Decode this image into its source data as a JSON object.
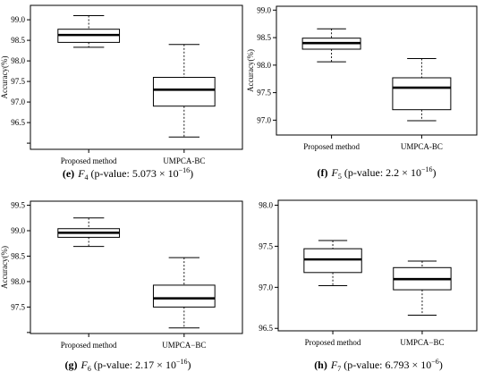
{
  "chart_data": [
    {
      "type": "box",
      "ylabel": "Accuracy(%)",
      "ylim": [
        95.85,
        99.35
      ],
      "yticks": [
        96.5,
        97.0,
        97.5,
        98.0,
        98.5,
        99.0
      ],
      "ytick_labels": [
        "96.5",
        "97.0",
        "97.5",
        "98.0",
        "98.5",
        "99.0"
      ],
      "minor_yticks": [
        96.0
      ],
      "categories": [
        "Proposed method",
        "UMPCA-BC"
      ],
      "boxes": [
        {
          "min": 98.33,
          "q1": 98.45,
          "median": 98.63,
          "q3": 98.77,
          "max": 99.1
        },
        {
          "min": 96.15,
          "q1": 96.9,
          "median": 97.3,
          "q3": 97.6,
          "max": 98.4
        }
      ],
      "caption": {
        "letter": "(e)",
        "var": "F",
        "sub": "4",
        "text": " (p-value: 5.073 × 10",
        "exp": "−16",
        "close": ")"
      }
    },
    {
      "type": "box",
      "ylabel": "Accuracy(%)",
      "ylim": [
        96.73,
        99.07
      ],
      "yticks": [
        97.0,
        97.5,
        98.0,
        98.5,
        99.0
      ],
      "ytick_labels": [
        "97.0",
        "97.5",
        "98.0",
        "98.5",
        "99.0"
      ],
      "minor_yticks": [],
      "categories": [
        "Proposed method",
        "UMPCA-BC"
      ],
      "boxes": [
        {
          "min": 98.06,
          "q1": 98.29,
          "median": 98.4,
          "q3": 98.49,
          "max": 98.66
        },
        {
          "min": 96.99,
          "q1": 97.19,
          "median": 97.59,
          "q3": 97.77,
          "max": 98.12
        }
      ],
      "caption": {
        "letter": "(f)",
        "var": "F",
        "sub": "5",
        "text": " (p-value: 2.2 × 10",
        "exp": "−16",
        "close": ")"
      }
    },
    {
      "type": "box",
      "ylabel": "Accuracy(%)",
      "ylim": [
        96.98,
        99.58
      ],
      "yticks": [
        97.5,
        98.0,
        98.5,
        99.0,
        99.5
      ],
      "ytick_labels": [
        "97.5",
        "98.0",
        "98.5",
        "99.0",
        "99.5"
      ],
      "minor_yticks": [
        97.0
      ],
      "categories": [
        "Proposed method",
        "UMPCA−BC"
      ],
      "boxes": [
        {
          "min": 98.69,
          "q1": 98.87,
          "median": 98.96,
          "q3": 99.04,
          "max": 99.25
        },
        {
          "min": 97.09,
          "q1": 97.5,
          "median": 97.67,
          "q3": 97.93,
          "max": 98.47
        }
      ],
      "caption": {
        "letter": "(g)",
        "var": "F",
        "sub": "6",
        "text": " (p-value: 2.17 × 10",
        "exp": "−16",
        "close": ")"
      }
    },
    {
      "type": "box",
      "ylabel": "",
      "ylim": [
        96.47,
        98.06
      ],
      "yticks": [
        96.5,
        97.0,
        97.5,
        98.0
      ],
      "ytick_labels": [
        "96.5",
        "97.0",
        "97.5",
        "98.0"
      ],
      "minor_yticks": [],
      "categories": [
        "Proposed method",
        "UMPCA−BC"
      ],
      "boxes": [
        {
          "min": 97.02,
          "q1": 97.18,
          "median": 97.34,
          "q3": 97.47,
          "max": 97.57
        },
        {
          "min": 96.66,
          "q1": 96.97,
          "median": 97.1,
          "q3": 97.24,
          "max": 97.32
        }
      ],
      "caption": {
        "letter": "(h)",
        "var": "F",
        "sub": "7",
        "text": " (p-value: 6.793 × 10",
        "exp": "−6",
        "close": ")"
      }
    }
  ]
}
